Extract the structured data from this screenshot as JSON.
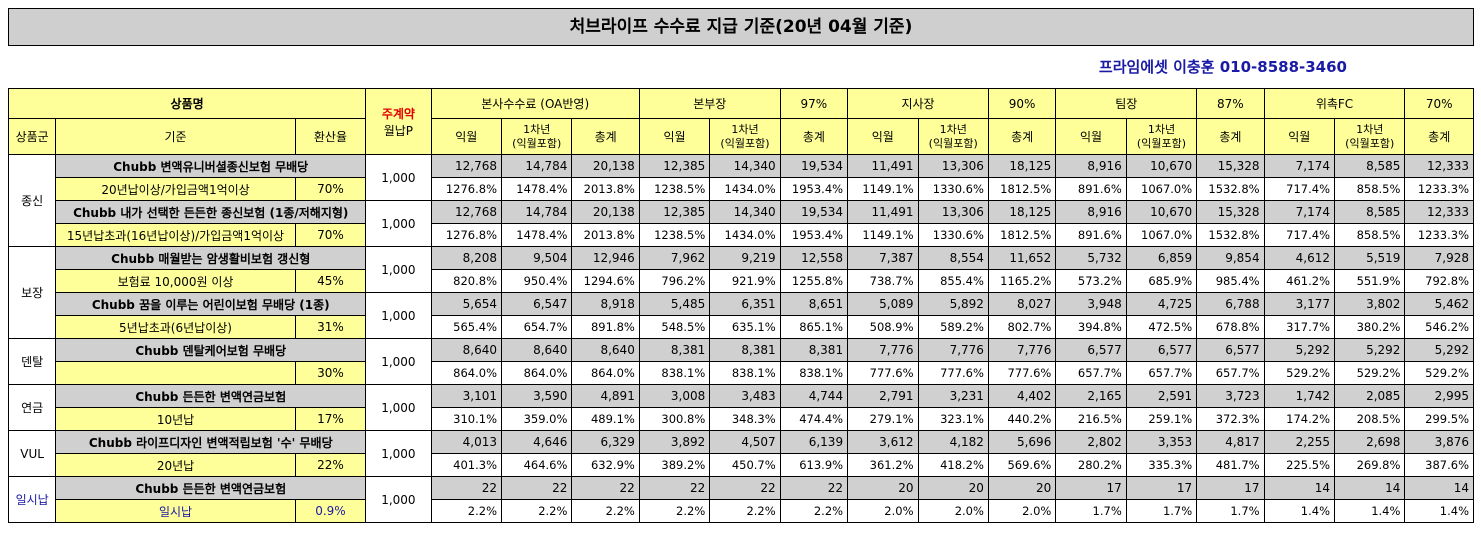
{
  "title": "처브라이프 수수료 지급 기준(20년 04월 기준)",
  "contact": "프라임에셋 이충훈 010-8588-3460",
  "header": {
    "product_name": "상품명",
    "monthly_label_red": "주계약",
    "monthly_label": "월납P",
    "group": "상품군",
    "criteria": "기준",
    "conversion": "환산율",
    "sections": [
      {
        "name": "본사수수료 (OA반영)",
        "rate": ""
      },
      {
        "name": "본부장",
        "rate": "97%"
      },
      {
        "name": "지사장",
        "rate": "90%"
      },
      {
        "name": "팀장",
        "rate": "87%"
      },
      {
        "name": "위촉FC",
        "rate": "70%"
      }
    ],
    "sub": [
      "익월",
      "1차년",
      "(익월포함)",
      "총계"
    ]
  },
  "rows": [
    {
      "group": "종신",
      "name": "Chubb 변액유니버셜종신보험 무배당",
      "criteria": "20년납이상/가입금액1억이상",
      "conv": "70%",
      "monthly": "1,000",
      "vals": [
        "12,768",
        "14,784",
        "20,138",
        "12,385",
        "14,340",
        "19,534",
        "11,491",
        "13,306",
        "18,125",
        "8,916",
        "10,670",
        "15,328",
        "7,174",
        "8,585",
        "12,333"
      ],
      "pcts": [
        "1276.8%",
        "1478.4%",
        "2013.8%",
        "1238.5%",
        "1434.0%",
        "1953.4%",
        "1149.1%",
        "1330.6%",
        "1812.5%",
        "891.6%",
        "1067.0%",
        "1532.8%",
        "717.4%",
        "858.5%",
        "1233.3%"
      ]
    },
    {
      "group": "",
      "name": "Chubb 내가 선택한 든든한 종신보험 (1종/저해지형)",
      "criteria": "15년납초과(16년납이상)/가입금액1억이상",
      "conv": "70%",
      "monthly": "1,000",
      "vals": [
        "12,768",
        "14,784",
        "20,138",
        "12,385",
        "14,340",
        "19,534",
        "11,491",
        "13,306",
        "18,125",
        "8,916",
        "10,670",
        "15,328",
        "7,174",
        "8,585",
        "12,333"
      ],
      "pcts": [
        "1276.8%",
        "1478.4%",
        "2013.8%",
        "1238.5%",
        "1434.0%",
        "1953.4%",
        "1149.1%",
        "1330.6%",
        "1812.5%",
        "891.6%",
        "1067.0%",
        "1532.8%",
        "717.4%",
        "858.5%",
        "1233.3%"
      ]
    },
    {
      "group": "보장",
      "name": "Chubb 매월받는 암생활비보험 갱신형",
      "criteria": "보험료 10,000원 이상",
      "conv": "45%",
      "monthly": "1,000",
      "vals": [
        "8,208",
        "9,504",
        "12,946",
        "7,962",
        "9,219",
        "12,558",
        "7,387",
        "8,554",
        "11,652",
        "5,732",
        "6,859",
        "9,854",
        "4,612",
        "5,519",
        "7,928"
      ],
      "pcts": [
        "820.8%",
        "950.4%",
        "1294.6%",
        "796.2%",
        "921.9%",
        "1255.8%",
        "738.7%",
        "855.4%",
        "1165.2%",
        "573.2%",
        "685.9%",
        "985.4%",
        "461.2%",
        "551.9%",
        "792.8%"
      ]
    },
    {
      "group": "",
      "name": "Chubb 꿈을 이루는 어린이보험 무배당 (1종)",
      "criteria": "5년납초과(6년납이상)",
      "conv": "31%",
      "monthly": "1,000",
      "vals": [
        "5,654",
        "6,547",
        "8,918",
        "5,485",
        "6,351",
        "8,651",
        "5,089",
        "5,892",
        "8,027",
        "3,948",
        "4,725",
        "6,788",
        "3,177",
        "3,802",
        "5,462"
      ],
      "pcts": [
        "565.4%",
        "654.7%",
        "891.8%",
        "548.5%",
        "635.1%",
        "865.1%",
        "508.9%",
        "589.2%",
        "802.7%",
        "394.8%",
        "472.5%",
        "678.8%",
        "317.7%",
        "380.2%",
        "546.2%"
      ]
    },
    {
      "group": "덴탈",
      "name": "Chubb 덴탈케어보험 무배당",
      "criteria": "",
      "conv": "30%",
      "monthly": "1,000",
      "vals": [
        "8,640",
        "8,640",
        "8,640",
        "8,381",
        "8,381",
        "8,381",
        "7,776",
        "7,776",
        "7,776",
        "6,577",
        "6,577",
        "6,577",
        "5,292",
        "5,292",
        "5,292"
      ],
      "pcts": [
        "864.0%",
        "864.0%",
        "864.0%",
        "838.1%",
        "838.1%",
        "838.1%",
        "777.6%",
        "777.6%",
        "777.6%",
        "657.7%",
        "657.7%",
        "657.7%",
        "529.2%",
        "529.2%",
        "529.2%"
      ]
    },
    {
      "group": "연금",
      "name": "Chubb 든든한 변액연금보험",
      "criteria": "10년납",
      "conv": "17%",
      "monthly": "1,000",
      "vals": [
        "3,101",
        "3,590",
        "4,891",
        "3,008",
        "3,483",
        "4,744",
        "2,791",
        "3,231",
        "4,402",
        "2,165",
        "2,591",
        "3,723",
        "1,742",
        "2,085",
        "2,995"
      ],
      "pcts": [
        "310.1%",
        "359.0%",
        "489.1%",
        "300.8%",
        "348.3%",
        "474.4%",
        "279.1%",
        "323.1%",
        "440.2%",
        "216.5%",
        "259.1%",
        "372.3%",
        "174.2%",
        "208.5%",
        "299.5%"
      ]
    },
    {
      "group": "VUL",
      "name": "Chubb 라이프디자인 변액적립보험 '수' 무배당",
      "criteria": "20년납",
      "conv": "22%",
      "monthly": "1,000",
      "vals": [
        "4,013",
        "4,646",
        "6,329",
        "3,892",
        "4,507",
        "6,139",
        "3,612",
        "4,182",
        "5,696",
        "2,802",
        "3,353",
        "4,817",
        "2,255",
        "2,698",
        "3,876"
      ],
      "pcts": [
        "401.3%",
        "464.6%",
        "632.9%",
        "389.2%",
        "450.7%",
        "613.9%",
        "361.2%",
        "418.2%",
        "569.6%",
        "280.2%",
        "335.3%",
        "481.7%",
        "225.5%",
        "269.8%",
        "387.6%"
      ]
    },
    {
      "group": "일시납",
      "name": "Chubb 든든한 변액연금보험",
      "criteria": "일시납",
      "conv": "0.9%",
      "monthly": "1,000",
      "vals": [
        "22",
        "22",
        "22",
        "22",
        "22",
        "22",
        "20",
        "20",
        "20",
        "17",
        "17",
        "17",
        "14",
        "14",
        "14"
      ],
      "pcts": [
        "2.2%",
        "2.2%",
        "2.2%",
        "2.2%",
        "2.2%",
        "2.2%",
        "2.0%",
        "2.0%",
        "2.0%",
        "1.7%",
        "1.7%",
        "1.7%",
        "1.4%",
        "1.4%",
        "1.4%"
      ]
    }
  ]
}
